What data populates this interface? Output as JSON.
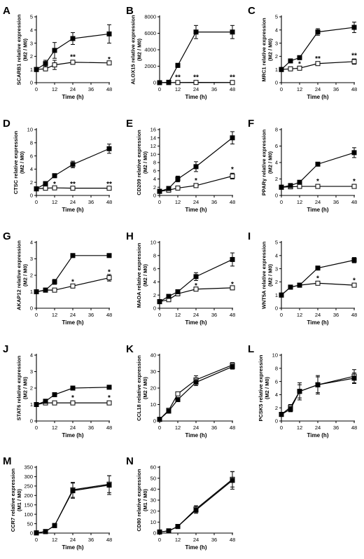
{
  "chart_data": [
    {
      "panel": "A",
      "type": "line",
      "ylabel": [
        "SCARB1 relative expression",
        "(M2 / M0)"
      ],
      "xlabel": "Time (h)",
      "x": [
        0,
        6,
        12,
        24,
        48
      ],
      "xticks": [
        0,
        12,
        24,
        36,
        48
      ],
      "yticks": [
        0,
        1,
        2,
        3,
        4,
        5
      ],
      "ylim": [
        0,
        5
      ],
      "series": [
        {
          "marker": "filled-square",
          "values": [
            1.0,
            1.45,
            2.45,
            3.35,
            3.7
          ],
          "errors": [
            0.1,
            0.25,
            0.6,
            0.45,
            0.7
          ]
        },
        {
          "marker": "open-square",
          "values": [
            1.0,
            1.05,
            1.35,
            1.55,
            1.5
          ],
          "errors": [
            0.05,
            0.1,
            0.35,
            0.15,
            0.1
          ]
        }
      ],
      "annotations": [
        {
          "x": 24,
          "y": 1.95,
          "text": "**"
        },
        {
          "x": 48,
          "y": 1.75,
          "text": "*"
        }
      ]
    },
    {
      "panel": "B",
      "type": "line",
      "ylabel": [
        "ALOX15 relative expression",
        "(M2 / M0)"
      ],
      "xlabel": "Time (h)",
      "x": [
        0,
        6,
        12,
        24,
        48
      ],
      "xticks": [
        0,
        12,
        24,
        36,
        48
      ],
      "yticks": [
        0,
        2000,
        4000,
        6000,
        8000
      ],
      "ylim": [
        0,
        8000
      ],
      "series": [
        {
          "marker": "filled-square",
          "values": [
            0,
            50,
            2100,
            6150,
            6150
          ],
          "errors": [
            0,
            30,
            250,
            800,
            800
          ]
        },
        {
          "marker": "open-square",
          "values": [
            0,
            10,
            20,
            30,
            20
          ],
          "errors": [
            0,
            5,
            10,
            10,
            10
          ]
        }
      ],
      "annotations": [
        {
          "x": 12,
          "y": 650,
          "text": "**"
        },
        {
          "x": 24,
          "y": 650,
          "text": "**"
        },
        {
          "x": 48,
          "y": 650,
          "text": "**"
        }
      ]
    },
    {
      "panel": "C",
      "type": "line",
      "ylabel": [
        "MRC1 relative expression",
        "(M2 / M0)"
      ],
      "xlabel": "Time (h)",
      "x": [
        0,
        6,
        12,
        24,
        48
      ],
      "xticks": [
        0,
        12,
        24,
        36,
        48
      ],
      "yticks": [
        0,
        1,
        2,
        3,
        4,
        5
      ],
      "ylim": [
        0,
        5
      ],
      "series": [
        {
          "marker": "filled-square",
          "values": [
            1.0,
            1.65,
            1.9,
            3.85,
            4.2
          ],
          "errors": [
            0.05,
            0.1,
            0.15,
            0.25,
            0.4
          ]
        },
        {
          "marker": "open-square",
          "values": [
            1.0,
            1.05,
            1.1,
            1.45,
            1.6
          ],
          "errors": [
            0.05,
            0.05,
            0.05,
            0.1,
            0.2
          ]
        }
      ],
      "annotations": [
        {
          "x": 12,
          "y": 1.4,
          "text": "*"
        },
        {
          "x": 24,
          "y": 1.8,
          "text": "**"
        },
        {
          "x": 48,
          "y": 2.05,
          "text": "**"
        }
      ]
    },
    {
      "panel": "D",
      "type": "line",
      "ylabel": [
        "CTSC relative expression",
        "(M2 / M0)"
      ],
      "xlabel": "Time (h)",
      "x": [
        0,
        6,
        12,
        24,
        48
      ],
      "xticks": [
        0,
        12,
        24,
        36,
        48
      ],
      "yticks": [
        0,
        2,
        4,
        6,
        8,
        10
      ],
      "ylim": [
        0,
        10
      ],
      "series": [
        {
          "marker": "filled-square",
          "values": [
            1.0,
            1.8,
            3.0,
            4.7,
            7.1
          ],
          "errors": [
            0.1,
            0.2,
            0.3,
            0.5,
            0.7
          ]
        },
        {
          "marker": "open-square",
          "values": [
            1.0,
            1.1,
            1.15,
            1.1,
            1.1
          ],
          "errors": [
            0.05,
            0.05,
            0.05,
            0.05,
            0.05
          ]
        }
      ],
      "annotations": [
        {
          "x": 12,
          "y": 1.7,
          "text": "*"
        },
        {
          "x": 24,
          "y": 1.7,
          "text": "**"
        },
        {
          "x": 48,
          "y": 1.7,
          "text": "**"
        }
      ]
    },
    {
      "panel": "E",
      "type": "line",
      "ylabel": [
        "CD209 relative expression",
        "(M2 / M0)"
      ],
      "xlabel": "Time (h)",
      "x": [
        0,
        6,
        12,
        24,
        48
      ],
      "xticks": [
        0,
        12,
        24,
        36,
        48
      ],
      "yticks": [
        0,
        2,
        4,
        6,
        8,
        10,
        12,
        14,
        16
      ],
      "ylim": [
        0,
        16
      ],
      "series": [
        {
          "marker": "filled-square",
          "values": [
            1.0,
            1.7,
            4.0,
            7.0,
            14.0
          ],
          "errors": [
            0.2,
            0.4,
            0.7,
            1.2,
            1.5
          ]
        },
        {
          "marker": "open-square",
          "values": [
            1.0,
            1.3,
            1.8,
            2.4,
            4.7
          ],
          "errors": [
            0.1,
            0.2,
            0.2,
            0.3,
            0.7
          ]
        }
      ],
      "annotations": [
        {
          "x": 24,
          "y": 3.6,
          "text": "*"
        },
        {
          "x": 48,
          "y": 6.3,
          "text": "*"
        }
      ]
    },
    {
      "panel": "F",
      "type": "line",
      "ylabel": [
        "PPARγ relative expression",
        "(M2 / M0)"
      ],
      "xlabel": "Time (h)",
      "x": [
        0,
        6,
        12,
        24,
        48
      ],
      "xticks": [
        0,
        12,
        24,
        36,
        48
      ],
      "yticks": [
        0,
        2,
        4,
        6,
        8
      ],
      "ylim": [
        0,
        8
      ],
      "series": [
        {
          "marker": "filled-square",
          "values": [
            1.0,
            1.2,
            1.6,
            3.8,
            5.2
          ],
          "errors": [
            0.05,
            0.1,
            0.15,
            0.2,
            0.6
          ]
        },
        {
          "marker": "open-square",
          "values": [
            1.0,
            1.05,
            1.1,
            1.1,
            1.1
          ],
          "errors": [
            0.05,
            0.05,
            0.05,
            0.05,
            0.05
          ]
        }
      ],
      "annotations": [
        {
          "x": 24,
          "y": 1.7,
          "text": "*"
        },
        {
          "x": 48,
          "y": 1.7,
          "text": "*"
        }
      ]
    },
    {
      "panel": "G",
      "type": "line",
      "ylabel": [
        "AKAP12 relative expression",
        "(M2 / M0)"
      ],
      "xlabel": "Time (h)",
      "x": [
        0,
        6,
        12,
        24,
        48
      ],
      "xticks": [
        0,
        12,
        24,
        36,
        48
      ],
      "yticks": [
        0,
        1,
        2,
        3,
        4
      ],
      "ylim": [
        0,
        4
      ],
      "series": [
        {
          "marker": "filled-square",
          "values": [
            1.0,
            1.1,
            1.6,
            3.2,
            3.2
          ],
          "errors": [
            0.05,
            0.05,
            0.15,
            0.1,
            0.05
          ]
        },
        {
          "marker": "open-square",
          "values": [
            1.0,
            1.1,
            1.1,
            1.35,
            1.85
          ],
          "errors": [
            0.05,
            0.05,
            0.05,
            0.1,
            0.2
          ]
        }
      ],
      "annotations": [
        {
          "x": 24,
          "y": 1.6,
          "text": "*"
        },
        {
          "x": 48,
          "y": 2.2,
          "text": "*"
        }
      ]
    },
    {
      "panel": "H",
      "type": "line",
      "ylabel": [
        "MAOA relative expression",
        "(M2 / M0)"
      ],
      "xlabel": "Time (h)",
      "x": [
        0,
        6,
        12,
        24,
        48
      ],
      "xticks": [
        0,
        12,
        24,
        36,
        48
      ],
      "yticks": [
        0,
        2,
        4,
        6,
        8,
        10
      ],
      "ylim": [
        0,
        10
      ],
      "series": [
        {
          "marker": "filled-square",
          "values": [
            1.0,
            1.8,
            2.5,
            4.8,
            7.4
          ],
          "errors": [
            0.1,
            0.2,
            0.3,
            0.6,
            1.0
          ]
        },
        {
          "marker": "open-square",
          "values": [
            1.0,
            1.3,
            2.2,
            2.9,
            3.1
          ],
          "errors": [
            0.2,
            0.2,
            0.3,
            0.3,
            0.3
          ]
        }
      ],
      "annotations": [
        {
          "x": 24,
          "y": 3.4,
          "text": "*"
        },
        {
          "x": 48,
          "y": 3.6,
          "text": "*"
        }
      ]
    },
    {
      "panel": "I",
      "type": "line",
      "ylabel": [
        "WNT5A relative expression",
        "(M2 / M0)"
      ],
      "xlabel": "Time (h)",
      "x": [
        0,
        6,
        12,
        24,
        48
      ],
      "xticks": [
        0,
        12,
        24,
        36,
        48
      ],
      "yticks": [
        0,
        1,
        2,
        3,
        4,
        5
      ],
      "ylim": [
        0,
        5
      ],
      "series": [
        {
          "marker": "filled-square",
          "values": [
            1.0,
            1.6,
            1.75,
            3.05,
            3.65
          ],
          "errors": [
            0.1,
            0.05,
            0.1,
            0.1,
            0.2
          ]
        },
        {
          "marker": "open-square",
          "values": [
            1.0,
            1.6,
            1.75,
            1.9,
            1.75
          ],
          "errors": [
            0.1,
            0.05,
            0.1,
            0.1,
            0.1
          ]
        }
      ],
      "annotations": [
        {
          "x": 24,
          "y": 2.25,
          "text": "*"
        },
        {
          "x": 48,
          "y": 2.1,
          "text": "*"
        }
      ]
    },
    {
      "panel": "J",
      "type": "line",
      "ylabel": [
        "STAT6 relative expression",
        "(M2 / M0)"
      ],
      "xlabel": "Time (h)",
      "x": [
        0,
        6,
        12,
        24,
        48
      ],
      "xticks": [
        0,
        12,
        24,
        36,
        48
      ],
      "yticks": [
        0,
        1,
        2,
        3,
        4
      ],
      "ylim": [
        0,
        4
      ],
      "series": [
        {
          "marker": "filled-square",
          "values": [
            1.0,
            1.2,
            1.6,
            2.0,
            2.05
          ],
          "errors": [
            0.05,
            0.05,
            0.1,
            0.1,
            0.1
          ]
        },
        {
          "marker": "open-square",
          "values": [
            1.0,
            1.1,
            1.1,
            1.1,
            1.1
          ],
          "errors": [
            0.05,
            0.05,
            0.05,
            0.05,
            0.05
          ]
        }
      ],
      "annotations": [
        {
          "x": 24,
          "y": 1.4,
          "text": "*"
        },
        {
          "x": 48,
          "y": 1.4,
          "text": "*"
        }
      ]
    },
    {
      "panel": "K",
      "type": "line",
      "ylabel": [
        "CCL18 relative expression",
        "(M2 / M0)"
      ],
      "xlabel": "Time (h)",
      "x": [
        0,
        6,
        12,
        24,
        48
      ],
      "xticks": [
        0,
        12,
        24,
        36,
        48
      ],
      "yticks": [
        0,
        10,
        20,
        30,
        40
      ],
      "ylim": [
        0,
        40
      ],
      "series": [
        {
          "marker": "filled-square",
          "values": [
            1,
            6,
            13,
            23.5,
            33
          ],
          "errors": [
            0.5,
            1,
            1,
            2,
            1.5
          ]
        },
        {
          "marker": "open-square",
          "values": [
            1,
            6.5,
            16.5,
            25,
            34
          ],
          "errors": [
            0.5,
            1,
            1,
            2.5,
            1.5
          ]
        }
      ],
      "annotations": []
    },
    {
      "panel": "L",
      "type": "line",
      "ylabel": [
        "PCSK5 relative expression",
        "(M2 / M0)"
      ],
      "xlabel": "Time (h)",
      "x": [
        0,
        6,
        12,
        24,
        48
      ],
      "xticks": [
        0,
        12,
        24,
        36,
        48
      ],
      "yticks": [
        0,
        2,
        4,
        6,
        8,
        10
      ],
      "ylim": [
        0,
        10
      ],
      "series": [
        {
          "marker": "filled-square",
          "values": [
            1.0,
            1.8,
            4.5,
            5.5,
            6.5
          ],
          "errors": [
            0.3,
            0.4,
            1.0,
            1.4,
            0.8
          ]
        },
        {
          "marker": "open-square",
          "values": [
            1.0,
            2.1,
            4.5,
            5.5,
            6.8
          ],
          "errors": [
            0.3,
            0.4,
            1.3,
            1.2,
            1.0
          ]
        }
      ],
      "annotations": []
    },
    {
      "panel": "M",
      "type": "line",
      "ylabel": [
        "CCR7 relative expression",
        "(M1 / M0)"
      ],
      "xlabel": "Time (h)",
      "x": [
        0,
        6,
        12,
        24,
        48
      ],
      "xticks": [
        0,
        12,
        24,
        36,
        48
      ],
      "yticks": [
        0,
        50,
        100,
        150,
        200,
        250,
        300,
        350
      ],
      "ylim": [
        0,
        350
      ],
      "series": [
        {
          "marker": "filled-square",
          "values": [
            1,
            8,
            40,
            225,
            255
          ],
          "errors": [
            1,
            3,
            5,
            40,
            50
          ]
        },
        {
          "marker": "open-square",
          "values": [
            1,
            8,
            40,
            230,
            260
          ],
          "errors": [
            1,
            3,
            5,
            40,
            45
          ]
        }
      ],
      "annotations": []
    },
    {
      "panel": "N",
      "type": "line",
      "ylabel": [
        "CD80 relative expression",
        "(M1 / M0)"
      ],
      "xlabel": "Time (h)",
      "x": [
        0,
        6,
        12,
        24,
        48
      ],
      "xticks": [
        0,
        12,
        24,
        36,
        48
      ],
      "yticks": [
        0,
        10,
        20,
        30,
        40,
        50,
        60
      ],
      "ylim": [
        0,
        60
      ],
      "series": [
        {
          "marker": "filled-square",
          "values": [
            1,
            2,
            6,
            21,
            48
          ],
          "errors": [
            0.5,
            0.5,
            1,
            3,
            8
          ]
        },
        {
          "marker": "open-square",
          "values": [
            1,
            2,
            6,
            22,
            49
          ],
          "errors": [
            0.5,
            0.5,
            1,
            3,
            7
          ]
        }
      ],
      "annotations": []
    }
  ]
}
